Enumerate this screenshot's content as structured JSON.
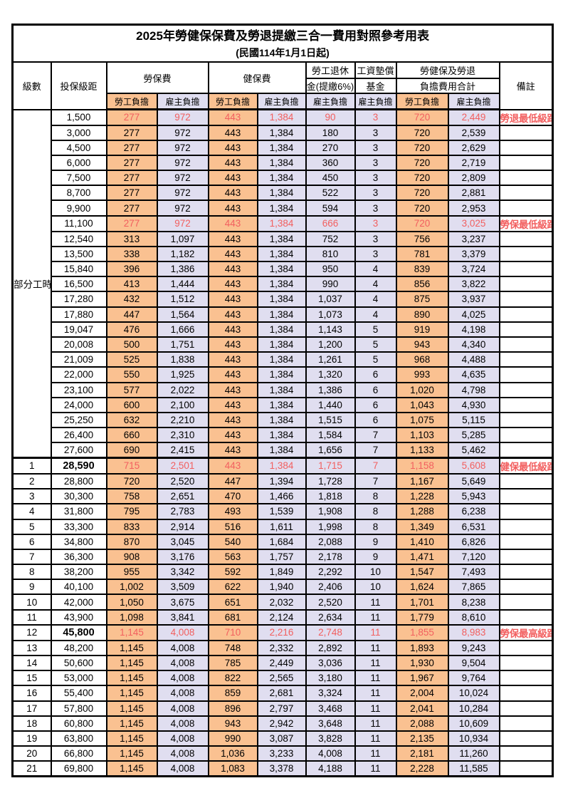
{
  "title": "2025年勞健保保費及勞退提繳三合一費用對照參考用表",
  "subtitle": "(民國114年1月1日起)",
  "table": {
    "headers": {
      "level": "級數",
      "bracket": "投保級距",
      "labor": "勞保費",
      "health": "健保費",
      "pension_top": "勞工退休",
      "pension_bottom": "金(提繳6%)",
      "fund_top": "工資墊償",
      "fund_bottom": "基金",
      "total_top": "勞健保及勞退",
      "total_bottom": "負擔費用合計",
      "remark": "備註",
      "employee": "勞工負擔",
      "employer": "雇主負擔"
    },
    "part_time_label": "部分工時",
    "colors": {
      "employee_fill": "#FAC191",
      "employer_fill": "#E0DEF0",
      "highlight_text": "#F25F5F"
    },
    "rows": [
      {
        "level": null,
        "bracket": "1,500",
        "values": [
          "277",
          "972",
          "443",
          "1,384",
          "90",
          "3",
          "720",
          "2,449"
        ],
        "remark": "勞退最低級距",
        "red": true,
        "bold": false,
        "thick_top": false
      },
      {
        "level": null,
        "bracket": "3,000",
        "values": [
          "277",
          "972",
          "443",
          "1,384",
          "180",
          "3",
          "720",
          "2,539"
        ],
        "remark": "",
        "red": false,
        "bold": false,
        "thick_top": false
      },
      {
        "level": null,
        "bracket": "4,500",
        "values": [
          "277",
          "972",
          "443",
          "1,384",
          "270",
          "3",
          "720",
          "2,629"
        ],
        "remark": "",
        "red": false,
        "bold": false,
        "thick_top": false
      },
      {
        "level": null,
        "bracket": "6,000",
        "values": [
          "277",
          "972",
          "443",
          "1,384",
          "360",
          "3",
          "720",
          "2,719"
        ],
        "remark": "",
        "red": false,
        "bold": false,
        "thick_top": false
      },
      {
        "level": null,
        "bracket": "7,500",
        "values": [
          "277",
          "972",
          "443",
          "1,384",
          "450",
          "3",
          "720",
          "2,809"
        ],
        "remark": "",
        "red": false,
        "bold": false,
        "thick_top": false
      },
      {
        "level": null,
        "bracket": "8,700",
        "values": [
          "277",
          "972",
          "443",
          "1,384",
          "522",
          "3",
          "720",
          "2,881"
        ],
        "remark": "",
        "red": false,
        "bold": false,
        "thick_top": false
      },
      {
        "level": null,
        "bracket": "9,900",
        "values": [
          "277",
          "972",
          "443",
          "1,384",
          "594",
          "3",
          "720",
          "2,953"
        ],
        "remark": "",
        "red": false,
        "bold": false,
        "thick_top": false
      },
      {
        "level": null,
        "bracket": "11,100",
        "values": [
          "277",
          "972",
          "443",
          "1,384",
          "666",
          "3",
          "720",
          "3,025"
        ],
        "remark": "勞保最低級距",
        "red": true,
        "bold": false,
        "thick_top": false
      },
      {
        "level": null,
        "bracket": "12,540",
        "values": [
          "313",
          "1,097",
          "443",
          "1,384",
          "752",
          "3",
          "756",
          "3,237"
        ],
        "remark": "",
        "red": false,
        "bold": false,
        "thick_top": false
      },
      {
        "level": null,
        "bracket": "13,500",
        "values": [
          "338",
          "1,182",
          "443",
          "1,384",
          "810",
          "3",
          "781",
          "3,379"
        ],
        "remark": "",
        "red": false,
        "bold": false,
        "thick_top": false
      },
      {
        "level": null,
        "bracket": "15,840",
        "values": [
          "396",
          "1,386",
          "443",
          "1,384",
          "950",
          "4",
          "839",
          "3,724"
        ],
        "remark": "",
        "red": false,
        "bold": false,
        "thick_top": false
      },
      {
        "level": null,
        "bracket": "16,500",
        "values": [
          "413",
          "1,444",
          "443",
          "1,384",
          "990",
          "4",
          "856",
          "3,822"
        ],
        "remark": "",
        "red": false,
        "bold": false,
        "thick_top": false
      },
      {
        "level": null,
        "bracket": "17,280",
        "values": [
          "432",
          "1,512",
          "443",
          "1,384",
          "1,037",
          "4",
          "875",
          "3,937"
        ],
        "remark": "",
        "red": false,
        "bold": false,
        "thick_top": false
      },
      {
        "level": null,
        "bracket": "17,880",
        "values": [
          "447",
          "1,564",
          "443",
          "1,384",
          "1,073",
          "4",
          "890",
          "4,025"
        ],
        "remark": "",
        "red": false,
        "bold": false,
        "thick_top": false
      },
      {
        "level": null,
        "bracket": "19,047",
        "values": [
          "476",
          "1,666",
          "443",
          "1,384",
          "1,143",
          "5",
          "919",
          "4,198"
        ],
        "remark": "",
        "red": false,
        "bold": false,
        "thick_top": false
      },
      {
        "level": null,
        "bracket": "20,008",
        "values": [
          "500",
          "1,751",
          "443",
          "1,384",
          "1,200",
          "5",
          "943",
          "4,340"
        ],
        "remark": "",
        "red": false,
        "bold": false,
        "thick_top": false
      },
      {
        "level": null,
        "bracket": "21,009",
        "values": [
          "525",
          "1,838",
          "443",
          "1,384",
          "1,261",
          "5",
          "968",
          "4,488"
        ],
        "remark": "",
        "red": false,
        "bold": false,
        "thick_top": false
      },
      {
        "level": null,
        "bracket": "22,000",
        "values": [
          "550",
          "1,925",
          "443",
          "1,384",
          "1,320",
          "6",
          "993",
          "4,635"
        ],
        "remark": "",
        "red": false,
        "bold": false,
        "thick_top": false
      },
      {
        "level": null,
        "bracket": "23,100",
        "values": [
          "577",
          "2,022",
          "443",
          "1,384",
          "1,386",
          "6",
          "1,020",
          "4,798"
        ],
        "remark": "",
        "red": false,
        "bold": false,
        "thick_top": false
      },
      {
        "level": null,
        "bracket": "24,000",
        "values": [
          "600",
          "2,100",
          "443",
          "1,384",
          "1,440",
          "6",
          "1,043",
          "4,930"
        ],
        "remark": "",
        "red": false,
        "bold": false,
        "thick_top": false
      },
      {
        "level": null,
        "bracket": "25,250",
        "values": [
          "632",
          "2,210",
          "443",
          "1,384",
          "1,515",
          "6",
          "1,075",
          "5,115"
        ],
        "remark": "",
        "red": false,
        "bold": false,
        "thick_top": false
      },
      {
        "level": null,
        "bracket": "26,400",
        "values": [
          "660",
          "2,310",
          "443",
          "1,384",
          "1,584",
          "7",
          "1,103",
          "5,285"
        ],
        "remark": "",
        "red": false,
        "bold": false,
        "thick_top": false
      },
      {
        "level": null,
        "bracket": "27,600",
        "values": [
          "690",
          "2,415",
          "443",
          "1,384",
          "1,656",
          "7",
          "1,133",
          "5,462"
        ],
        "remark": "",
        "red": false,
        "bold": false,
        "thick_top": false
      },
      {
        "level": "1",
        "bracket": "28,590",
        "values": [
          "715",
          "2,501",
          "443",
          "1,384",
          "1,715",
          "7",
          "1,158",
          "5,608"
        ],
        "remark": "健保最低級距",
        "red": true,
        "bold": true,
        "thick_top": true
      },
      {
        "level": "2",
        "bracket": "28,800",
        "values": [
          "720",
          "2,520",
          "447",
          "1,394",
          "1,728",
          "7",
          "1,167",
          "5,649"
        ],
        "remark": "",
        "red": false,
        "bold": false,
        "thick_top": false
      },
      {
        "level": "3",
        "bracket": "30,300",
        "values": [
          "758",
          "2,651",
          "470",
          "1,466",
          "1,818",
          "8",
          "1,228",
          "5,943"
        ],
        "remark": "",
        "red": false,
        "bold": false,
        "thick_top": false
      },
      {
        "level": "4",
        "bracket": "31,800",
        "values": [
          "795",
          "2,783",
          "493",
          "1,539",
          "1,908",
          "8",
          "1,288",
          "6,238"
        ],
        "remark": "",
        "red": false,
        "bold": false,
        "thick_top": false
      },
      {
        "level": "5",
        "bracket": "33,300",
        "values": [
          "833",
          "2,914",
          "516",
          "1,611",
          "1,998",
          "8",
          "1,349",
          "6,531"
        ],
        "remark": "",
        "red": false,
        "bold": false,
        "thick_top": false
      },
      {
        "level": "6",
        "bracket": "34,800",
        "values": [
          "870",
          "3,045",
          "540",
          "1,684",
          "2,088",
          "9",
          "1,410",
          "6,826"
        ],
        "remark": "",
        "red": false,
        "bold": false,
        "thick_top": false
      },
      {
        "level": "7",
        "bracket": "36,300",
        "values": [
          "908",
          "3,176",
          "563",
          "1,757",
          "2,178",
          "9",
          "1,471",
          "7,120"
        ],
        "remark": "",
        "red": false,
        "bold": false,
        "thick_top": false
      },
      {
        "level": "8",
        "bracket": "38,200",
        "values": [
          "955",
          "3,342",
          "592",
          "1,849",
          "2,292",
          "10",
          "1,547",
          "7,493"
        ],
        "remark": "",
        "red": false,
        "bold": false,
        "thick_top": false
      },
      {
        "level": "9",
        "bracket": "40,100",
        "values": [
          "1,002",
          "3,509",
          "622",
          "1,940",
          "2,406",
          "10",
          "1,624",
          "7,865"
        ],
        "remark": "",
        "red": false,
        "bold": false,
        "thick_top": false
      },
      {
        "level": "10",
        "bracket": "42,000",
        "values": [
          "1,050",
          "3,675",
          "651",
          "2,032",
          "2,520",
          "11",
          "1,701",
          "8,238"
        ],
        "remark": "",
        "red": false,
        "bold": false,
        "thick_top": false
      },
      {
        "level": "11",
        "bracket": "43,900",
        "values": [
          "1,098",
          "3,841",
          "681",
          "2,124",
          "2,634",
          "11",
          "1,779",
          "8,610"
        ],
        "remark": "",
        "red": false,
        "bold": false,
        "thick_top": false
      },
      {
        "level": "12",
        "bracket": "45,800",
        "values": [
          "1,145",
          "4,008",
          "710",
          "2,216",
          "2,748",
          "11",
          "1,855",
          "8,983"
        ],
        "remark": "勞保最高級距",
        "red": true,
        "bold": true,
        "thick_top": false
      },
      {
        "level": "13",
        "bracket": "48,200",
        "values": [
          "1,145",
          "4,008",
          "748",
          "2,332",
          "2,892",
          "11",
          "1,893",
          "9,243"
        ],
        "remark": "",
        "red": false,
        "bold": false,
        "thick_top": false
      },
      {
        "level": "14",
        "bracket": "50,600",
        "values": [
          "1,145",
          "4,008",
          "785",
          "2,449",
          "3,036",
          "11",
          "1,930",
          "9,504"
        ],
        "remark": "",
        "red": false,
        "bold": false,
        "thick_top": false
      },
      {
        "level": "15",
        "bracket": "53,000",
        "values": [
          "1,145",
          "4,008",
          "822",
          "2,565",
          "3,180",
          "11",
          "1,967",
          "9,764"
        ],
        "remark": "",
        "red": false,
        "bold": false,
        "thick_top": false
      },
      {
        "level": "16",
        "bracket": "55,400",
        "values": [
          "1,145",
          "4,008",
          "859",
          "2,681",
          "3,324",
          "11",
          "2,004",
          "10,024"
        ],
        "remark": "",
        "red": false,
        "bold": false,
        "thick_top": false
      },
      {
        "level": "17",
        "bracket": "57,800",
        "values": [
          "1,145",
          "4,008",
          "896",
          "2,797",
          "3,468",
          "11",
          "2,041",
          "10,284"
        ],
        "remark": "",
        "red": false,
        "bold": false,
        "thick_top": false
      },
      {
        "level": "18",
        "bracket": "60,800",
        "values": [
          "1,145",
          "4,008",
          "943",
          "2,942",
          "3,648",
          "11",
          "2,088",
          "10,609"
        ],
        "remark": "",
        "red": false,
        "bold": false,
        "thick_top": false
      },
      {
        "level": "19",
        "bracket": "63,800",
        "values": [
          "1,145",
          "4,008",
          "990",
          "3,087",
          "3,828",
          "11",
          "2,135",
          "10,934"
        ],
        "remark": "",
        "red": false,
        "bold": false,
        "thick_top": false
      },
      {
        "level": "20",
        "bracket": "66,800",
        "values": [
          "1,145",
          "4,008",
          "1,036",
          "3,233",
          "4,008",
          "11",
          "2,181",
          "11,260"
        ],
        "remark": "",
        "red": false,
        "bold": false,
        "thick_top": false
      },
      {
        "level": "21",
        "bracket": "69,800",
        "values": [
          "1,145",
          "4,008",
          "1,083",
          "3,378",
          "4,188",
          "11",
          "2,228",
          "11,585"
        ],
        "remark": "",
        "red": false,
        "bold": false,
        "thick_top": false
      }
    ]
  }
}
